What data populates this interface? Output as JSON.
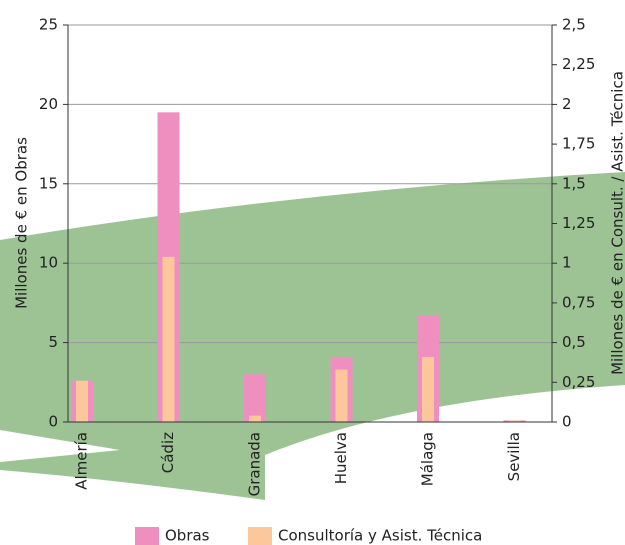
{
  "chart_data": {
    "type": "bar",
    "categories": [
      "Almería",
      "Cádiz",
      "Granada",
      "Huelva",
      "Málaga",
      "Sevilla"
    ],
    "series": [
      {
        "name": "Obras",
        "color": "#ef8fbf",
        "values": [
          2.6,
          19.5,
          3.0,
          4.1,
          6.7,
          0.1
        ]
      },
      {
        "name": "Consultoría y Asist. Técnica",
        "color": "#fcc89b",
        "axis": "y2",
        "values": [
          0.26,
          1.04,
          0.04,
          0.33,
          0.41,
          0.01
        ]
      }
    ],
    "ylabel": "Millones de € en Obras",
    "y2label": "Millones de € en Consult. / Asist. Técnica",
    "ylim": [
      0,
      25
    ],
    "yticks": [
      0,
      5,
      10,
      15,
      20,
      25
    ],
    "y2lim": [
      0,
      2.5
    ],
    "y2ticks": [
      0,
      {
        "value": 0.25,
        "label": "0,25"
      },
      {
        "value": 0.5,
        "label": "0,5"
      },
      {
        "value": 0.75,
        "label": "0,75"
      },
      1,
      {
        "value": 1.25,
        "label": "1,25"
      },
      {
        "value": 1.5,
        "label": "1,5"
      },
      {
        "value": 1.75,
        "label": "1,75"
      },
      2,
      {
        "value": 2.25,
        "label": "2,25"
      },
      {
        "value": 2.5,
        "label": "2,5"
      }
    ],
    "grid": true
  }
}
